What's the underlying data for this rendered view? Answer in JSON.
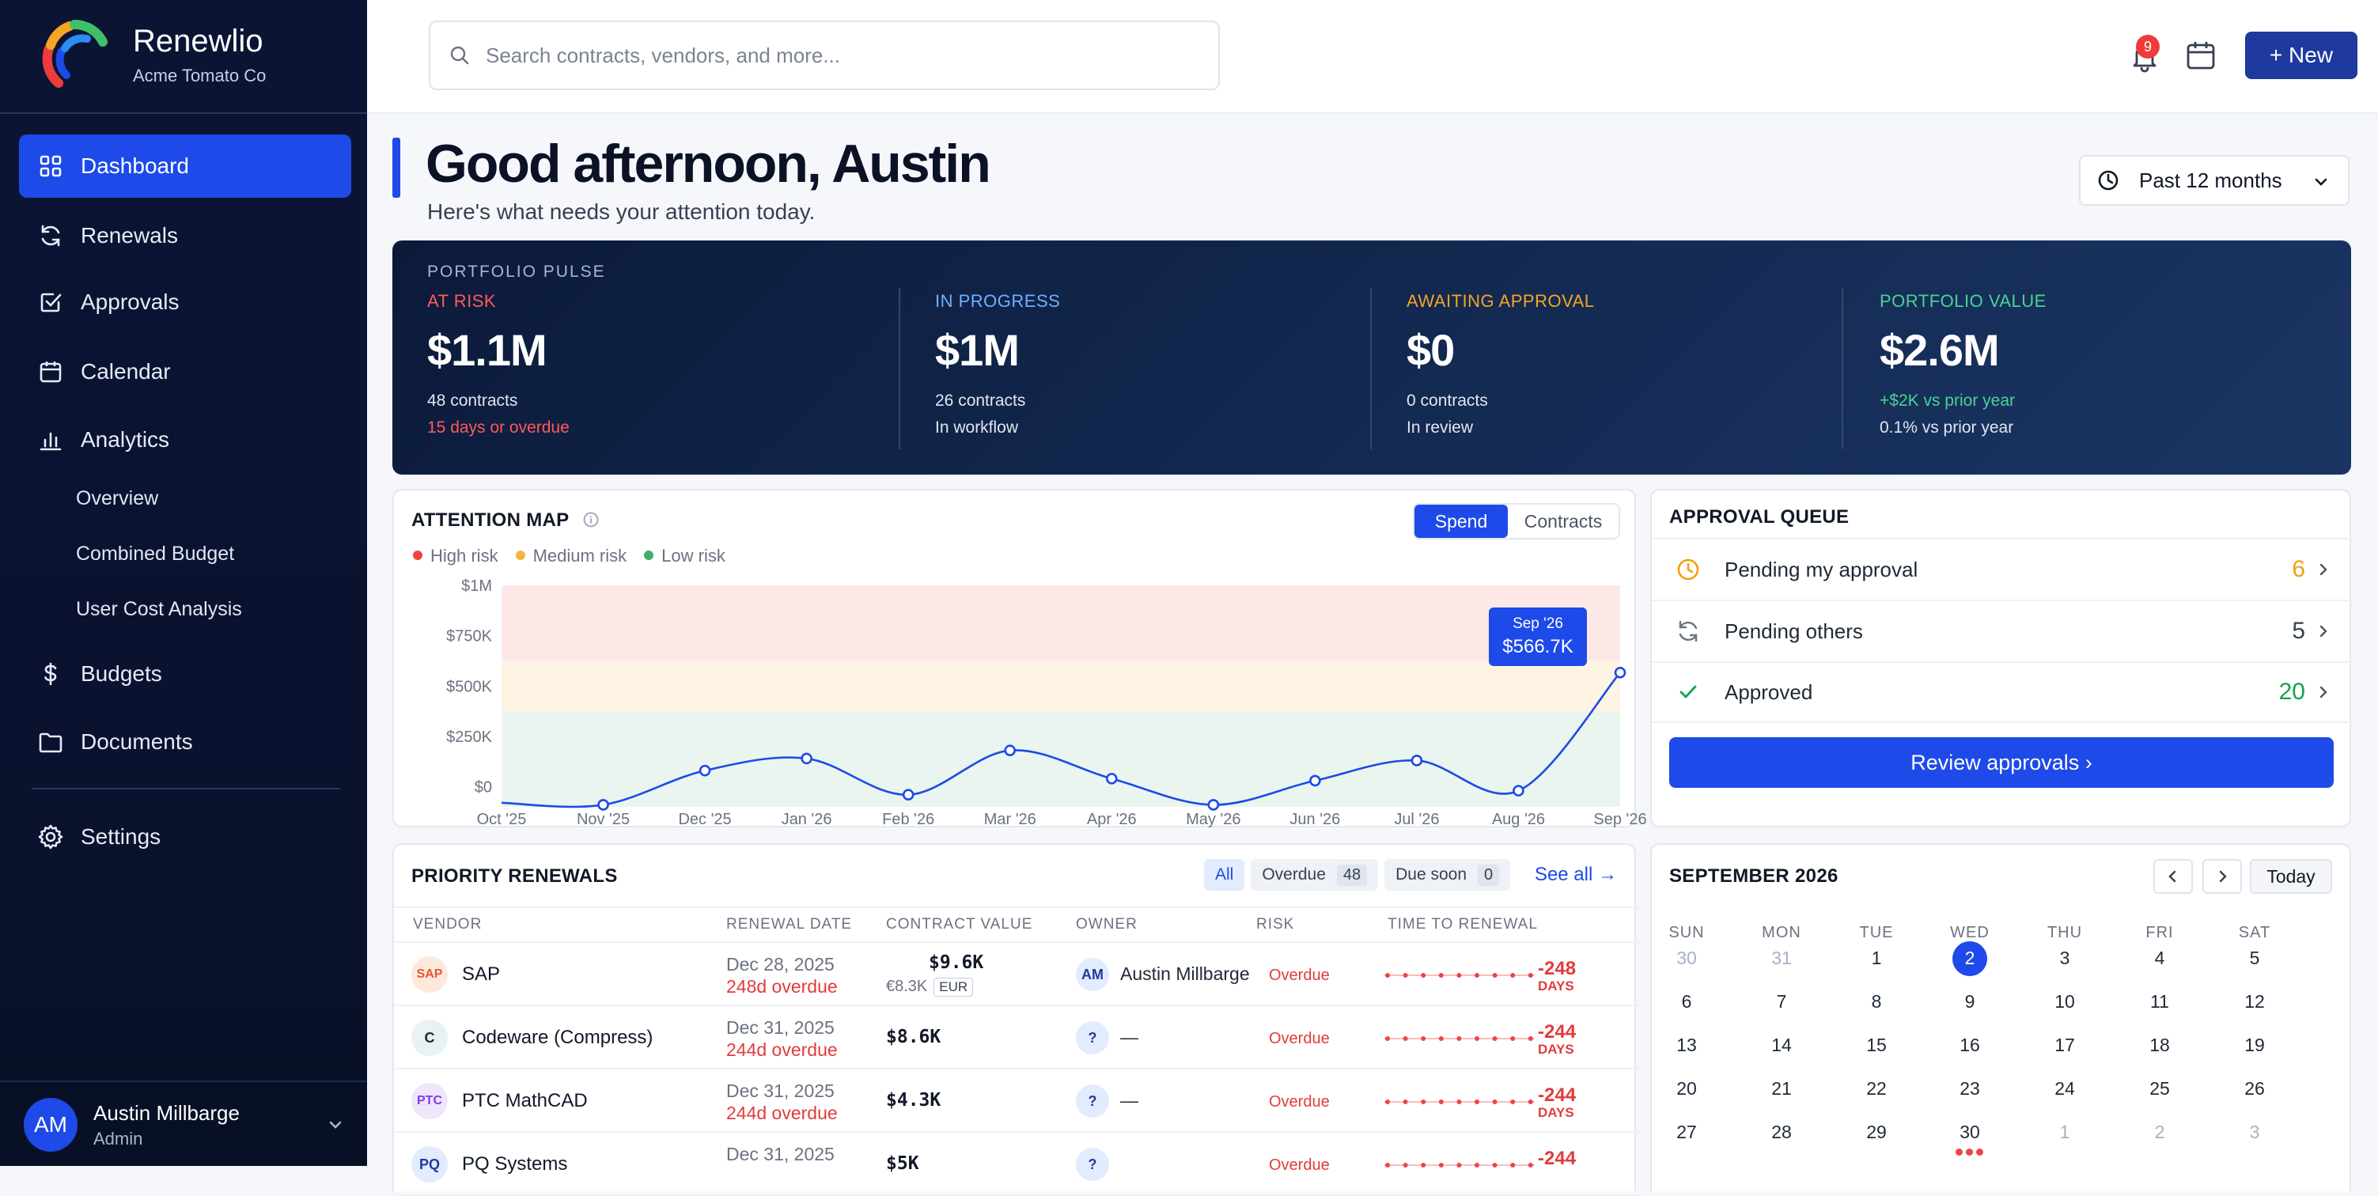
{
  "brand": {
    "name": "Renewlio",
    "org": "Acme Tomato Co"
  },
  "sidebar": {
    "items": [
      {
        "label": "Dashboard",
        "icon": "grid-icon"
      },
      {
        "label": "Renewals",
        "icon": "refresh-icon"
      },
      {
        "label": "Approvals",
        "icon": "check-square-icon"
      },
      {
        "label": "Calendar",
        "icon": "calendar-icon"
      },
      {
        "label": "Analytics",
        "icon": "bar-chart-icon"
      }
    ],
    "analytics_sub": [
      "Overview",
      "Combined Budget",
      "User Cost Analysis"
    ],
    "items2": [
      {
        "label": "Budgets",
        "icon": "dollar-icon"
      },
      {
        "label": "Documents",
        "icon": "folder-icon"
      }
    ],
    "settings": "Settings",
    "user": {
      "initials": "AM",
      "name": "Austin Millbarge",
      "role": "Admin"
    }
  },
  "topbar": {
    "search_placeholder": "Search contracts, vendors, and more...",
    "notif_count": "9",
    "new_label": "+ New"
  },
  "greeting": {
    "title": "Good afternoon, Austin",
    "subtitle": "Here's what needs your attention today.",
    "range": "Past 12 months"
  },
  "pulse": {
    "title": "PORTFOLIO PULSE",
    "metrics": [
      {
        "label": "AT RISK",
        "value": "$1.1M",
        "line1": "48 contracts",
        "line2": "15 days or overdue",
        "color": "#ff5a5a",
        "line2_color": "#ff5a5a"
      },
      {
        "label": "IN PROGRESS",
        "value": "$1M",
        "line1": "26 contracts",
        "line2": "In workflow",
        "color": "#6fb0ff",
        "line2_color": "#e1e6f0"
      },
      {
        "label": "AWAITING APPROVAL",
        "value": "$0",
        "line1": "0 contracts",
        "line2": "In review",
        "color": "#f5a524",
        "line2_color": "#e1e6f0"
      },
      {
        "label": "PORTFOLIO VALUE",
        "value": "$2.6M",
        "line1": "+$2K vs prior year",
        "line2": "0.1% vs prior year",
        "color": "#4ad295",
        "line1_color": "#4ad295",
        "line2_color": "#e1e6f0"
      }
    ]
  },
  "attention": {
    "title": "ATTENTION MAP",
    "toggle": [
      "Spend",
      "Contracts"
    ],
    "legend": [
      {
        "label": "High risk",
        "color": "#ef4444"
      },
      {
        "label": "Medium risk",
        "color": "#f5b73b"
      },
      {
        "label": "Low risk",
        "color": "#3fae6b"
      }
    ],
    "tooltip": {
      "label": "Sep '26",
      "value": "$566.7K"
    }
  },
  "chart_data": {
    "type": "line",
    "x": [
      "Oct '25",
      "Nov '25",
      "Dec '25",
      "Jan '26",
      "Feb '26",
      "Mar '26",
      "Apr '26",
      "May '26",
      "Jun '26",
      "Jul '26",
      "Aug '26",
      "Sep '26"
    ],
    "yticks": [
      "$1M",
      "$750K",
      "$500K",
      "$250K",
      "$0"
    ],
    "ylim": [
      -100,
      1000
    ],
    "series": [
      {
        "values": [
          -80,
          -90,
          80,
          140,
          -40,
          180,
          40,
          -90,
          30,
          130,
          -20,
          566.7
        ]
      }
    ],
    "bands": [
      {
        "from": 625,
        "to": 1000,
        "color": "#fde8e8"
      },
      {
        "from": 375,
        "to": 625,
        "color": "#fef4e4"
      },
      {
        "from": -100,
        "to": 375,
        "color": "#e9f5ee"
      }
    ]
  },
  "approval_queue": {
    "title": "APPROVAL QUEUE",
    "rows": [
      {
        "label": "Pending my approval",
        "count": "6",
        "color": "#f59e0b",
        "icon": "clock-icon"
      },
      {
        "label": "Pending others",
        "count": "5",
        "color": "#374151",
        "icon": "refresh-icon"
      },
      {
        "label": "Approved",
        "count": "20",
        "color": "#16a34a",
        "icon": "check-icon"
      }
    ],
    "button": "Review approvals  ›"
  },
  "renewals": {
    "title": "PRIORITY RENEWALS",
    "chips": {
      "all": "All",
      "overdue": "Overdue",
      "overdue_n": "48",
      "due": "Due soon",
      "due_n": "0"
    },
    "see_all": "See all →",
    "headers": [
      "VENDOR",
      "RENEWAL DATE",
      "CONTRACT VALUE",
      "OWNER",
      "RISK",
      "TIME TO RENEWAL"
    ],
    "rows": [
      {
        "logo": "SAP",
        "logo_bg": "#fde9dc",
        "logo_fg": "#e4572e",
        "vendor": "SAP",
        "date": "Dec 28, 2025",
        "overdue": "248d overdue",
        "value": "$9.6K",
        "sub": "€8.3K",
        "currency": "EUR",
        "owner_initials": "AM",
        "owner": "Austin Millbarge",
        "risk": "Overdue",
        "days": "-248",
        "days_unit": "DAYS"
      },
      {
        "logo": "C",
        "logo_bg": "#e8f1f4",
        "logo_fg": "#1f2937",
        "vendor": "Codeware (Compress)",
        "date": "Dec 31, 2025",
        "overdue": "244d overdue",
        "value": "$8.6K",
        "sub": "",
        "currency": "",
        "owner_initials": "?",
        "owner": "—",
        "risk": "Overdue",
        "days": "-244",
        "days_unit": "DAYS"
      },
      {
        "logo": "PTC",
        "logo_bg": "#efe6fb",
        "logo_fg": "#7c3aed",
        "vendor": "PTC MathCAD",
        "date": "Dec 31, 2025",
        "overdue": "244d overdue",
        "value": "$4.3K",
        "sub": "",
        "currency": "",
        "owner_initials": "?",
        "owner": "—",
        "risk": "Overdue",
        "days": "-244",
        "days_unit": "DAYS"
      },
      {
        "logo": "PQ",
        "logo_bg": "#e3ebff",
        "logo_fg": "#1e3a9e",
        "vendor": "PQ Systems",
        "date": "Dec 31, 2025",
        "overdue": "",
        "value": "$5K",
        "sub": "",
        "currency": "",
        "owner_initials": "?",
        "owner": "",
        "risk": "Overdue",
        "days": "-244",
        "days_unit": ""
      }
    ]
  },
  "calendar": {
    "title": "SEPTEMBER 2026",
    "today": "Today",
    "dow": [
      "SUN",
      "MON",
      "TUE",
      "WED",
      "THU",
      "FRI",
      "SAT"
    ],
    "weeks": [
      [
        "30",
        "31",
        "1",
        "2",
        "3",
        "4",
        "5"
      ],
      [
        "6",
        "7",
        "8",
        "9",
        "10",
        "11",
        "12"
      ],
      [
        "13",
        "14",
        "15",
        "16",
        "17",
        "18",
        "19"
      ],
      [
        "20",
        "21",
        "22",
        "23",
        "24",
        "25",
        "26"
      ],
      [
        "27",
        "28",
        "29",
        "30",
        "1",
        "2",
        "3"
      ]
    ],
    "selected": "2"
  }
}
